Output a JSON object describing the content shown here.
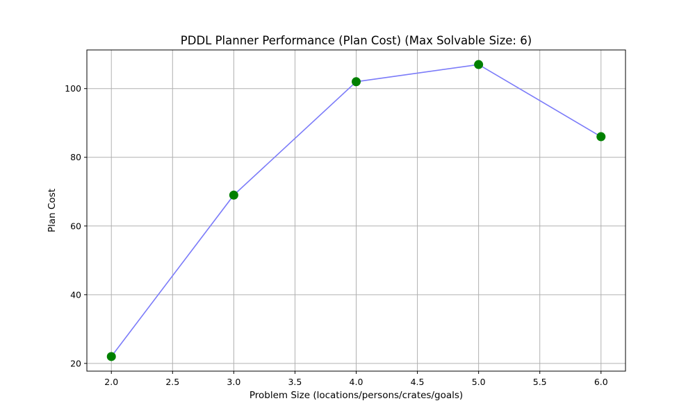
{
  "chart_data": {
    "type": "line",
    "title": "PDDL Planner Performance (Plan Cost) (Max Solvable Size: 6)",
    "xlabel": "Problem Size (locations/persons/crates/goals)",
    "ylabel": "Plan Cost",
    "x": [
      2,
      3,
      4,
      5,
      6
    ],
    "y": [
      22,
      69,
      102,
      107,
      86
    ],
    "xlim": [
      1.8,
      6.2
    ],
    "ylim": [
      17.75,
      111.25
    ],
    "x_ticks": [
      2.0,
      2.5,
      3.0,
      3.5,
      4.0,
      4.5,
      5.0,
      5.5,
      6.0
    ],
    "x_tick_labels": [
      "2.0",
      "2.5",
      "3.0",
      "3.5",
      "4.0",
      "4.5",
      "5.0",
      "5.5",
      "6.0"
    ],
    "y_ticks": [
      20,
      40,
      60,
      80,
      100
    ],
    "y_tick_labels": [
      "20",
      "40",
      "60",
      "80",
      "100"
    ],
    "grid": true,
    "line_color": "#7b7bf9",
    "marker_color": "#008000"
  }
}
